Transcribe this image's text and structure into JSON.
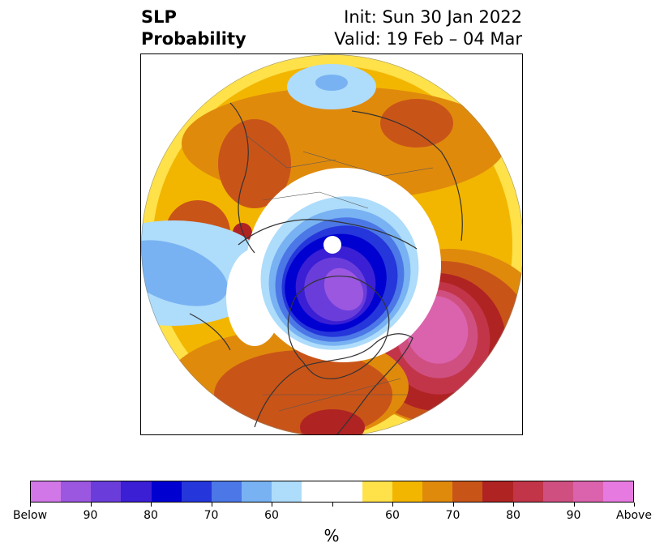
{
  "title": {
    "line1": "SLP",
    "line2": "Probability",
    "init": "Init: Sun 30 Jan 2022",
    "valid": "Valid: 19 Feb – 04 Mar"
  },
  "colorbar": {
    "colors": [
      "#d277e8",
      "#9b57e0",
      "#6a3ddb",
      "#3a1fd4",
      "#0000d1",
      "#2536da",
      "#4c77e6",
      "#78b2f2",
      "#aedcfb",
      "#ffffff",
      "#ffffff",
      "#ffe14a",
      "#f2b600",
      "#e08a0c",
      "#c95418",
      "#b02323",
      "#c23548",
      "#cf4f80",
      "#db63ad",
      "#e77ae0"
    ],
    "tick_labels": [
      "Below",
      "90",
      "80",
      "70",
      "60",
      "",
      "60",
      "70",
      "80",
      "90",
      "Above"
    ],
    "units": "%"
  },
  "colors": {
    "below_deep": "#9b57e0",
    "below_strong": "#0000d1",
    "below_light": "#aedcfb",
    "above_light": "#ffe14a",
    "above_mid": "#f2b600",
    "above_strong": "#c95418",
    "above_deep": "#db63ad",
    "coastline": "#333333"
  }
}
